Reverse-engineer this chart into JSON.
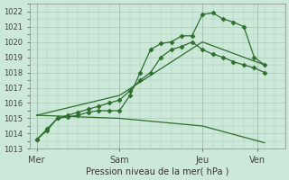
{
  "bg_color": "#cce8d8",
  "grid_color": "#aaccb8",
  "line_color": "#2d6e2d",
  "xlabel": "Pression niveau de la mer( hPa )",
  "ylim": [
    1013,
    1022.5
  ],
  "yticks": [
    1013,
    1014,
    1015,
    1016,
    1017,
    1018,
    1019,
    1020,
    1021,
    1022
  ],
  "xtick_labels": [
    "Mer",
    "Sam",
    "Jeu",
    "Ven"
  ],
  "xtick_positions": [
    0,
    24,
    48,
    64
  ],
  "xlim": [
    -2,
    72
  ],
  "lines": [
    {
      "x": [
        0,
        3,
        6,
        9,
        12,
        15,
        18,
        21,
        24,
        27,
        30,
        33,
        36,
        39,
        42,
        45,
        48,
        51,
        54,
        57,
        60,
        63,
        66
      ],
      "y": [
        1013.6,
        1014.3,
        1015.0,
        1015.1,
        1015.2,
        1015.4,
        1015.5,
        1015.5,
        1015.5,
        1016.5,
        1018.0,
        1019.5,
        1019.9,
        1020.0,
        1020.4,
        1020.4,
        1021.8,
        1021.9,
        1021.5,
        1021.3,
        1021.0,
        1019.0,
        1018.5
      ],
      "marker": "D",
      "markersize": 2.5
    },
    {
      "x": [
        0,
        3,
        6,
        9,
        12,
        15,
        18,
        21,
        24,
        27,
        30,
        33,
        36,
        39,
        42,
        45,
        48,
        51,
        54,
        57,
        60,
        63,
        66
      ],
      "y": [
        1013.6,
        1014.2,
        1015.0,
        1015.2,
        1015.4,
        1015.6,
        1015.8,
        1016.0,
        1016.2,
        1016.8,
        1017.5,
        1018.0,
        1019.0,
        1019.5,
        1019.7,
        1020.0,
        1019.5,
        1019.2,
        1019.0,
        1018.7,
        1018.5,
        1018.3,
        1018.0
      ],
      "marker": "D",
      "markersize": 2.5
    },
    {
      "x": [
        0,
        24,
        48,
        66
      ],
      "y": [
        1015.2,
        1016.5,
        1020.0,
        1018.5
      ],
      "marker": null,
      "markersize": 0
    },
    {
      "x": [
        0,
        24,
        48,
        66
      ],
      "y": [
        1015.2,
        1015.0,
        1014.5,
        1013.4
      ],
      "marker": null,
      "markersize": 0
    }
  ]
}
